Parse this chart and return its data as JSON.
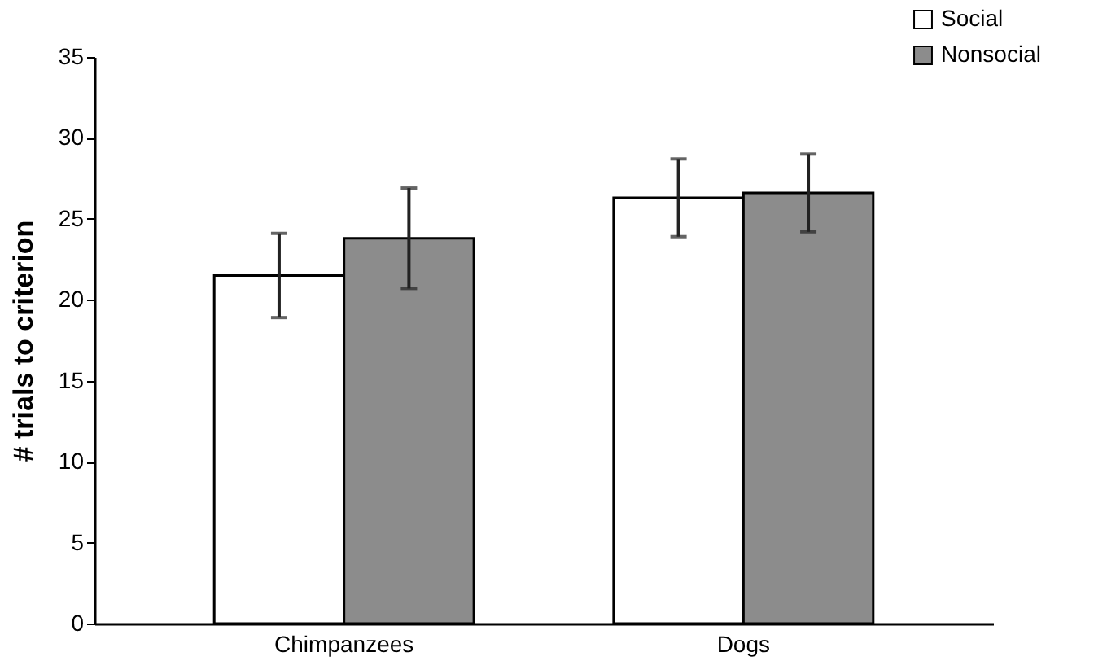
{
  "chart_data": {
    "type": "bar",
    "ylabel": "# trials to criterion",
    "categories": [
      "Chimpanzees",
      "Dogs"
    ],
    "series": [
      {
        "name": "Social",
        "color": "#ffffff",
        "values": [
          21.5,
          26.3
        ],
        "errors": [
          2.6,
          2.4
        ]
      },
      {
        "name": "Nonsocial",
        "color": "#8c8c8c",
        "values": [
          23.8,
          26.6
        ],
        "errors": [
          3.1,
          2.4
        ]
      }
    ],
    "ylim": [
      0,
      35
    ],
    "yticks": [
      0,
      5,
      10,
      15,
      20,
      25,
      30,
      35
    ],
    "grid": false,
    "legend": "top right"
  }
}
